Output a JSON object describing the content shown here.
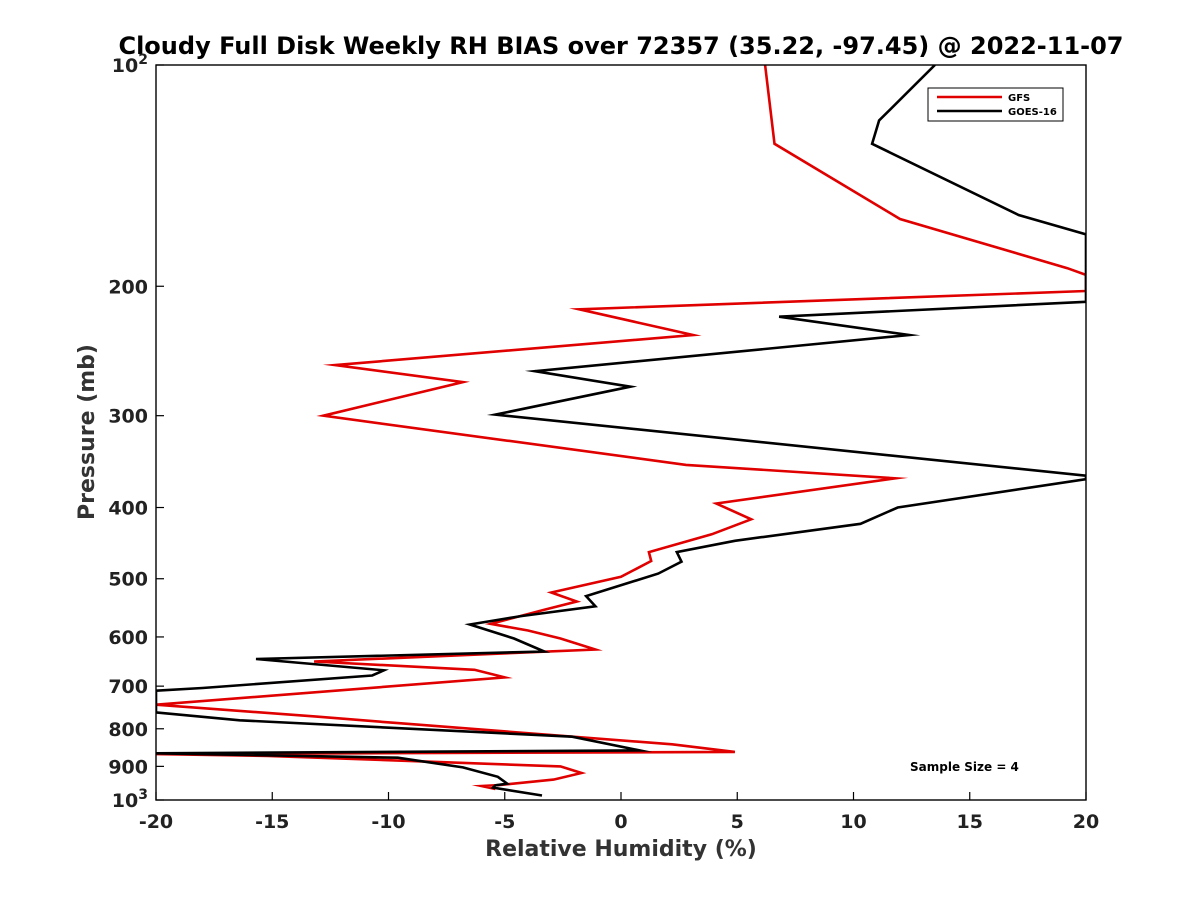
{
  "chart_data": {
    "type": "line",
    "title": "Cloudy Full Disk Weekly RH BIAS over 72357 (35.22, -97.45) @ 2022-11-07",
    "xlabel": "Relative Humidity (%)",
    "ylabel": "Pressure (mb)",
    "xlim": [
      -20,
      20
    ],
    "ylim": [
      100,
      1000
    ],
    "y_scale": "log",
    "y_reversed": true,
    "grid": false,
    "legend_position": "top-right",
    "x_ticks": [
      "-20",
      "-15",
      "-10",
      "-5",
      "0",
      "5",
      "10",
      "15",
      "20"
    ],
    "y_ticks": [
      {
        "value": 100,
        "base": "10",
        "exp": "2"
      },
      {
        "value": 200,
        "base": "200",
        "exp": ""
      },
      {
        "value": 300,
        "base": "300",
        "exp": ""
      },
      {
        "value": 400,
        "base": "400",
        "exp": ""
      },
      {
        "value": 500,
        "base": "500",
        "exp": ""
      },
      {
        "value": 600,
        "base": "600",
        "exp": ""
      },
      {
        "value": 700,
        "base": "700",
        "exp": ""
      },
      {
        "value": 800,
        "base": "800",
        "exp": ""
      },
      {
        "value": 900,
        "base": "900",
        "exp": ""
      },
      {
        "value": 1000,
        "base": "10",
        "exp": "3"
      }
    ],
    "series": [
      {
        "name": "GFS",
        "color": "#e00000",
        "points": [
          [
            6.2,
            100
          ],
          [
            6.6,
            128
          ],
          [
            12.0,
            162
          ],
          [
            19.2,
            189
          ],
          [
            20,
            193
          ],
          [
            20,
            203
          ],
          [
            -1.8,
            215
          ],
          [
            3.1,
            233
          ],
          [
            -12.3,
            256
          ],
          [
            -6.8,
            270
          ],
          [
            -12.8,
            300
          ],
          [
            2.8,
            350
          ],
          [
            11.8,
            365
          ],
          [
            4.1,
            395
          ],
          [
            5.6,
            415
          ],
          [
            3.9,
            435
          ],
          [
            1.2,
            460
          ],
          [
            1.3,
            473
          ],
          [
            0.0,
            497
          ],
          [
            -3.0,
            522
          ],
          [
            -1.9,
            537
          ],
          [
            -3.3,
            551
          ],
          [
            -5.6,
            576
          ],
          [
            -4.0,
            588
          ],
          [
            -2.6,
            603
          ],
          [
            -1.1,
            624
          ],
          [
            -13.2,
            648
          ],
          [
            -6.3,
            665
          ],
          [
            -5.0,
            681
          ],
          [
            -20.0,
            742
          ],
          [
            -13.1,
            770
          ],
          [
            -9.6,
            786
          ],
          [
            2.2,
            840
          ],
          [
            4.9,
            860
          ],
          [
            -20.0,
            866
          ],
          [
            -15.2,
            871
          ],
          [
            -2.6,
            900
          ],
          [
            -1.7,
            919
          ],
          [
            -2.9,
            938
          ],
          [
            -5.2,
            954
          ],
          [
            -6.0,
            957
          ],
          [
            -5.4,
            966
          ]
        ]
      },
      {
        "name": "GOES-16",
        "color": "#000000",
        "points": [
          [
            13.5,
            100
          ],
          [
            11.1,
            119
          ],
          [
            10.8,
            128
          ],
          [
            17.1,
            160
          ],
          [
            20,
            170
          ],
          [
            20,
            210
          ],
          [
            6.8,
            220
          ],
          [
            12.4,
            233
          ],
          [
            -3.7,
            261
          ],
          [
            0.4,
            274
          ],
          [
            -5.4,
            299
          ],
          [
            20.0,
            362
          ],
          [
            20.0,
            366
          ],
          [
            11.9,
            400
          ],
          [
            10.3,
            421
          ],
          [
            4.9,
            444
          ],
          [
            2.4,
            460
          ],
          [
            2.6,
            474
          ],
          [
            1.6,
            492
          ],
          [
            -1.5,
            528
          ],
          [
            -1.1,
            545
          ],
          [
            -4.3,
            562
          ],
          [
            -6.5,
            577
          ],
          [
            -4.6,
            603
          ],
          [
            -3.3,
            628
          ],
          [
            -15.7,
            643
          ],
          [
            -10.2,
            666
          ],
          [
            -10.7,
            677
          ],
          [
            -18.0,
            704
          ],
          [
            -20.0,
            710
          ],
          [
            -20.0,
            760
          ],
          [
            -16.4,
            779
          ],
          [
            -2.1,
            820
          ],
          [
            0.8,
            856
          ],
          [
            -20.0,
            864
          ],
          [
            -9.6,
            876
          ],
          [
            -6.8,
            903
          ],
          [
            -5.3,
            930
          ],
          [
            -4.9,
            950
          ],
          [
            -5.4,
            955
          ],
          [
            -5.5,
            962
          ],
          [
            -3.4,
            986
          ]
        ]
      }
    ],
    "annotation": "Sample Size = 4"
  }
}
